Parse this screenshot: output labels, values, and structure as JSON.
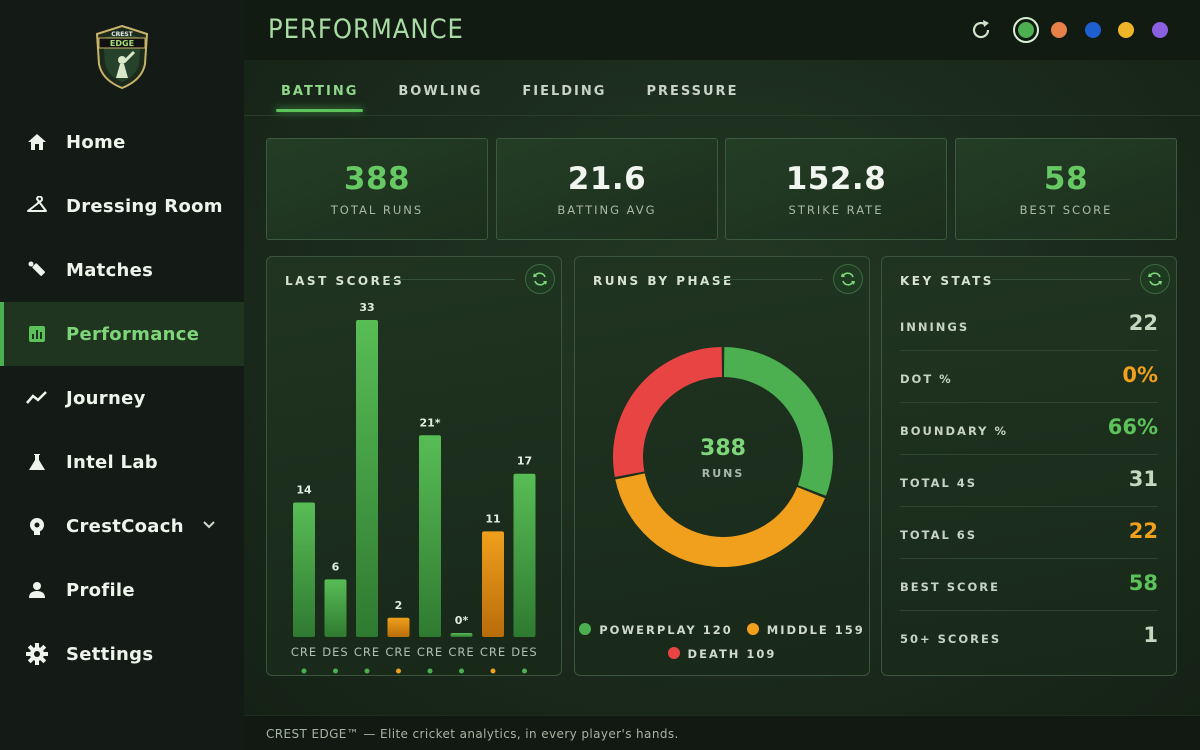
{
  "brand": {
    "logo_line1": "CREST",
    "logo_line2": "EDGE"
  },
  "sidebar": {
    "items": [
      {
        "label": "Home",
        "icon": "home-icon"
      },
      {
        "label": "Dressing Room",
        "icon": "hanger-icon"
      },
      {
        "label": "Matches",
        "icon": "cricket-bat-icon"
      },
      {
        "label": "Performance",
        "icon": "bar-chart-icon",
        "active": true
      },
      {
        "label": "Journey",
        "icon": "trend-line-icon"
      },
      {
        "label": "Intel Lab",
        "icon": "flask-icon"
      },
      {
        "label": "CrestCoach",
        "icon": "coach-icon"
      },
      {
        "label": "Profile",
        "icon": "person-icon"
      },
      {
        "label": "Settings",
        "icon": "gear-icon"
      }
    ]
  },
  "header": {
    "title": "PERFORMANCE",
    "theme_colors": [
      "#4caf50",
      "#e8804a",
      "#1e5fd0",
      "#f0b429",
      "#8a5fe0"
    ]
  },
  "tabs": [
    {
      "label": "BATTING",
      "active": true
    },
    {
      "label": "BOWLING"
    },
    {
      "label": "FIELDING"
    },
    {
      "label": "PRESSURE"
    }
  ],
  "stats": [
    {
      "value": "388",
      "label": "TOTAL RUNS",
      "highlight": true
    },
    {
      "value": "21.6",
      "label": "BATTING AVG"
    },
    {
      "value": "152.8",
      "label": "STRIKE RATE"
    },
    {
      "value": "58",
      "label": "BEST SCORE",
      "highlight": true
    }
  ],
  "last_scores": {
    "title": "LAST SCORES"
  },
  "runs_by_phase": {
    "title": "RUNS BY PHASE",
    "center_value": "388",
    "center_label": "RUNS",
    "legend": [
      {
        "label": "POWERPLAY 120",
        "color": "#4caf50"
      },
      {
        "label": "MIDDLE 159",
        "color": "#f0a01c"
      },
      {
        "label": "DEATH 109",
        "color": "#e84444"
      }
    ]
  },
  "key_stats": {
    "title": "KEY STATS",
    "rows": [
      {
        "label": "INNINGS",
        "value": "22",
        "color": "#c3d8be"
      },
      {
        "label": "DOT %",
        "value": "0%",
        "color": "#f0a01c"
      },
      {
        "label": "BOUNDARY %",
        "value": "66%",
        "color": "#5cc25a"
      },
      {
        "label": "TOTAL 4S",
        "value": "31",
        "color": "#c3d8be"
      },
      {
        "label": "TOTAL 6S",
        "value": "22",
        "color": "#f0a01c"
      },
      {
        "label": "BEST SCORE",
        "value": "58",
        "color": "#5cc25a"
      },
      {
        "label": "50+ SCORES",
        "value": "1",
        "color": "#c3d8be"
      }
    ]
  },
  "footer": {
    "text": "CREST EDGE™ — Elite cricket analytics, in every player's hands."
  },
  "chart_data": [
    {
      "type": "bar",
      "title": "LAST SCORES",
      "categories": [
        "CRE",
        "DES",
        "CRE",
        "CRE",
        "CRE",
        "CRE",
        "CRE",
        "DES"
      ],
      "values": [
        14,
        6,
        33,
        2,
        21,
        0,
        11,
        17
      ],
      "data_labels": [
        "14",
        "6",
        "33",
        "2",
        "21*",
        "0*",
        "11",
        "17"
      ],
      "bar_colors": [
        "#4caf50",
        "#4caf50",
        "#4caf50",
        "#f0a01c",
        "#4caf50",
        "#4caf50",
        "#f0a01c",
        "#4caf50"
      ],
      "ylim": [
        0,
        33
      ]
    },
    {
      "type": "pie",
      "title": "RUNS BY PHASE",
      "categories": [
        "POWERPLAY",
        "MIDDLE",
        "DEATH"
      ],
      "values": [
        120,
        159,
        109
      ],
      "colors": [
        "#4caf50",
        "#f0a01c",
        "#e84444"
      ]
    }
  ]
}
